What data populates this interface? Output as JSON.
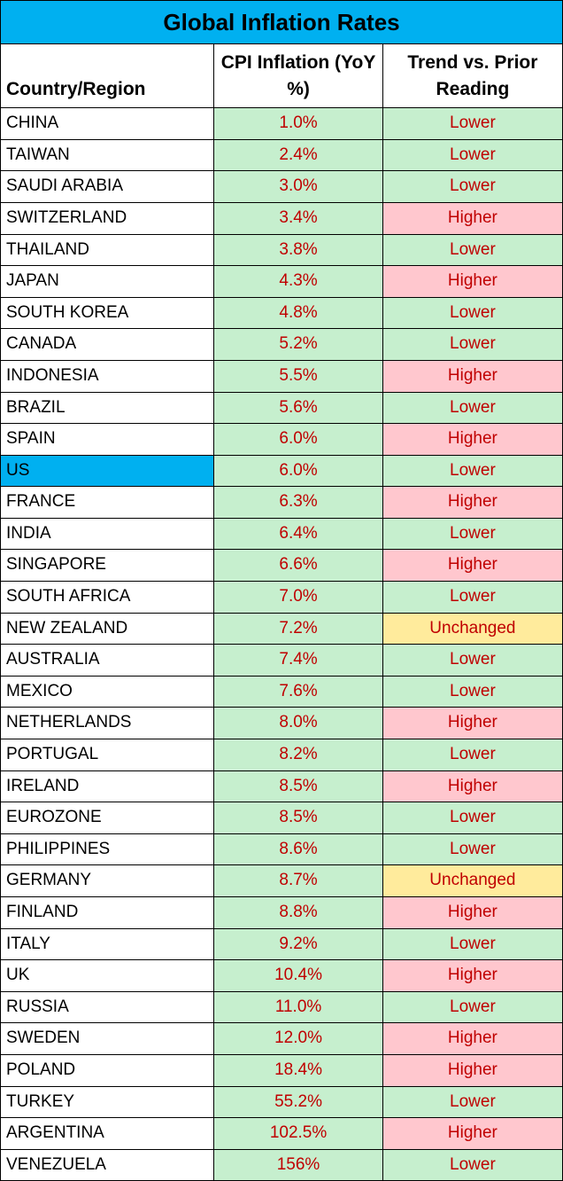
{
  "title": "Global Inflation Rates",
  "columns": {
    "country": "Country/Region",
    "cpi": "CPI Inflation (YoY %)",
    "trend": "Trend vs. Prior Reading"
  },
  "colors": {
    "green": "#c6efce",
    "pink": "#ffc7ce",
    "yellow": "#ffeb9c",
    "highlight_blue": "#00b0f0",
    "trend_text": "#c00000",
    "white": "#ffffff"
  },
  "rows": [
    {
      "country": "CHINA",
      "cpi": "1.0%",
      "trend": "Lower",
      "cpi_color": "green",
      "trend_color": "green",
      "highlight": false
    },
    {
      "country": "TAIWAN",
      "cpi": "2.4%",
      "trend": "Lower",
      "cpi_color": "green",
      "trend_color": "green",
      "highlight": false
    },
    {
      "country": "SAUDI ARABIA",
      "cpi": "3.0%",
      "trend": "Lower",
      "cpi_color": "green",
      "trend_color": "green",
      "highlight": false
    },
    {
      "country": "SWITZERLAND",
      "cpi": "3.4%",
      "trend": "Higher",
      "cpi_color": "green",
      "trend_color": "pink",
      "highlight": false
    },
    {
      "country": "THAILAND",
      "cpi": "3.8%",
      "trend": "Lower",
      "cpi_color": "green",
      "trend_color": "green",
      "highlight": false
    },
    {
      "country": "JAPAN",
      "cpi": "4.3%",
      "trend": "Higher",
      "cpi_color": "green",
      "trend_color": "pink",
      "highlight": false
    },
    {
      "country": "SOUTH KOREA",
      "cpi": "4.8%",
      "trend": "Lower",
      "cpi_color": "green",
      "trend_color": "green",
      "highlight": false
    },
    {
      "country": "CANADA",
      "cpi": "5.2%",
      "trend": "Lower",
      "cpi_color": "green",
      "trend_color": "green",
      "highlight": false
    },
    {
      "country": "INDONESIA",
      "cpi": "5.5%",
      "trend": "Higher",
      "cpi_color": "green",
      "trend_color": "pink",
      "highlight": false
    },
    {
      "country": "BRAZIL",
      "cpi": "5.6%",
      "trend": "Lower",
      "cpi_color": "green",
      "trend_color": "green",
      "highlight": false
    },
    {
      "country": "SPAIN",
      "cpi": "6.0%",
      "trend": "Higher",
      "cpi_color": "green",
      "trend_color": "pink",
      "highlight": false
    },
    {
      "country": "US",
      "cpi": "6.0%",
      "trend": "Lower",
      "cpi_color": "green",
      "trend_color": "green",
      "highlight": true
    },
    {
      "country": "FRANCE",
      "cpi": "6.3%",
      "trend": "Higher",
      "cpi_color": "green",
      "trend_color": "pink",
      "highlight": false
    },
    {
      "country": "INDIA",
      "cpi": "6.4%",
      "trend": "Lower",
      "cpi_color": "green",
      "trend_color": "green",
      "highlight": false
    },
    {
      "country": "SINGAPORE",
      "cpi": "6.6%",
      "trend": "Higher",
      "cpi_color": "green",
      "trend_color": "pink",
      "highlight": false
    },
    {
      "country": "SOUTH AFRICA",
      "cpi": "7.0%",
      "trend": "Lower",
      "cpi_color": "green",
      "trend_color": "green",
      "highlight": false
    },
    {
      "country": "NEW ZEALAND",
      "cpi": "7.2%",
      "trend": "Unchanged",
      "cpi_color": "green",
      "trend_color": "yellow",
      "highlight": false
    },
    {
      "country": "AUSTRALIA",
      "cpi": "7.4%",
      "trend": "Lower",
      "cpi_color": "green",
      "trend_color": "green",
      "highlight": false
    },
    {
      "country": "MEXICO",
      "cpi": "7.6%",
      "trend": "Lower",
      "cpi_color": "green",
      "trend_color": "green",
      "highlight": false
    },
    {
      "country": "NETHERLANDS",
      "cpi": "8.0%",
      "trend": "Higher",
      "cpi_color": "green",
      "trend_color": "pink",
      "highlight": false
    },
    {
      "country": "PORTUGAL",
      "cpi": "8.2%",
      "trend": "Lower",
      "cpi_color": "green",
      "trend_color": "green",
      "highlight": false
    },
    {
      "country": "IRELAND",
      "cpi": "8.5%",
      "trend": "Higher",
      "cpi_color": "green",
      "trend_color": "pink",
      "highlight": false
    },
    {
      "country": "EUROZONE",
      "cpi": "8.5%",
      "trend": "Lower",
      "cpi_color": "green",
      "trend_color": "green",
      "highlight": false
    },
    {
      "country": "PHILIPPINES",
      "cpi": "8.6%",
      "trend": "Lower",
      "cpi_color": "green",
      "trend_color": "green",
      "highlight": false
    },
    {
      "country": "GERMANY",
      "cpi": "8.7%",
      "trend": "Unchanged",
      "cpi_color": "green",
      "trend_color": "yellow",
      "highlight": false
    },
    {
      "country": "FINLAND",
      "cpi": "8.8%",
      "trend": "Higher",
      "cpi_color": "green",
      "trend_color": "pink",
      "highlight": false
    },
    {
      "country": "ITALY",
      "cpi": "9.2%",
      "trend": "Lower",
      "cpi_color": "green",
      "trend_color": "green",
      "highlight": false
    },
    {
      "country": "UK",
      "cpi": "10.4%",
      "trend": "Higher",
      "cpi_color": "green",
      "trend_color": "pink",
      "highlight": false
    },
    {
      "country": "RUSSIA",
      "cpi": "11.0%",
      "trend": "Lower",
      "cpi_color": "green",
      "trend_color": "green",
      "highlight": false
    },
    {
      "country": "SWEDEN",
      "cpi": "12.0%",
      "trend": "Higher",
      "cpi_color": "green",
      "trend_color": "pink",
      "highlight": false
    },
    {
      "country": "POLAND",
      "cpi": "18.4%",
      "trend": "Higher",
      "cpi_color": "green",
      "trend_color": "pink",
      "highlight": false
    },
    {
      "country": "TURKEY",
      "cpi": "55.2%",
      "trend": "Lower",
      "cpi_color": "green",
      "trend_color": "green",
      "highlight": false
    },
    {
      "country": "ARGENTINA",
      "cpi": "102.5%",
      "trend": "Higher",
      "cpi_color": "green",
      "trend_color": "pink",
      "highlight": false
    },
    {
      "country": "VENEZUELA",
      "cpi": "156%",
      "trend": "Lower",
      "cpi_color": "green",
      "trend_color": "green",
      "highlight": false
    }
  ]
}
